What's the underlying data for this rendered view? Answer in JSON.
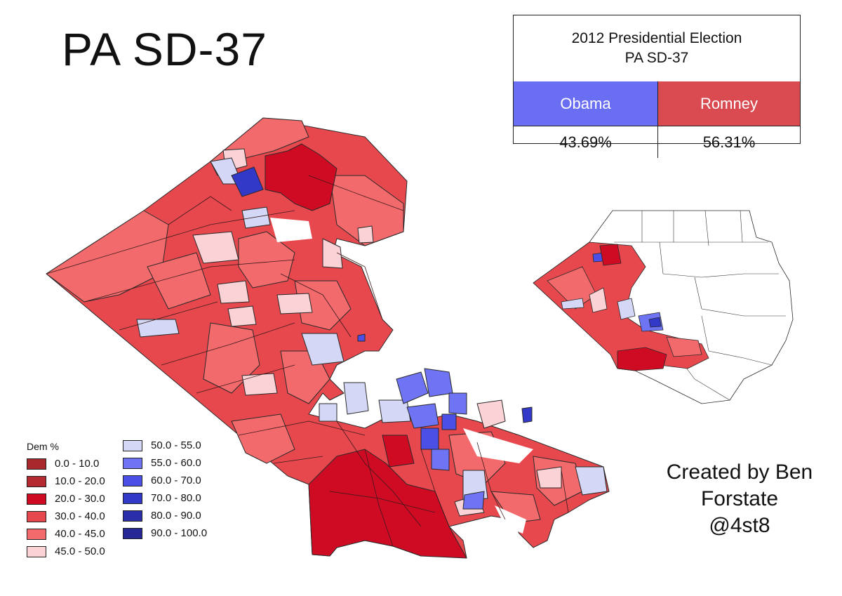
{
  "title": "PA SD-37",
  "results_box": {
    "line1": "2012 Presidential Election",
    "line2": "PA SD-37",
    "dem": {
      "name": "Obama",
      "pct": "43.69%",
      "color": "#6a6ef2"
    },
    "rep": {
      "name": "Romney",
      "pct": "56.31%",
      "color": "#d94b50"
    }
  },
  "legend": {
    "title": "Dem %",
    "items": [
      {
        "label": "0.0 - 10.0",
        "color": "#a8282d"
      },
      {
        "label": "10.0 - 20.0",
        "color": "#b52a31"
      },
      {
        "label": "20.0 - 30.0",
        "color": "#cf0a23"
      },
      {
        "label": "30.0 - 40.0",
        "color": "#e6484e"
      },
      {
        "label": "40.0 - 45.0",
        "color": "#f36a6c"
      },
      {
        "label": "45.0 - 50.0",
        "color": "#fbd2d6"
      },
      {
        "label": "50.0 - 55.0",
        "color": "#d4d8f6"
      },
      {
        "label": "55.0 - 60.0",
        "color": "#6e74f4"
      },
      {
        "label": "60.0 - 70.0",
        "color": "#4b4fe6"
      },
      {
        "label": "70.0 - 80.0",
        "color": "#3238c8"
      },
      {
        "label": "80.0 - 90.0",
        "color": "#2a2ea8"
      },
      {
        "label": "90.0 - 100.0",
        "color": "#252894"
      }
    ]
  },
  "credit": {
    "line1": "Created by Ben",
    "line2": "Forstate",
    "line3": "@4st8"
  }
}
